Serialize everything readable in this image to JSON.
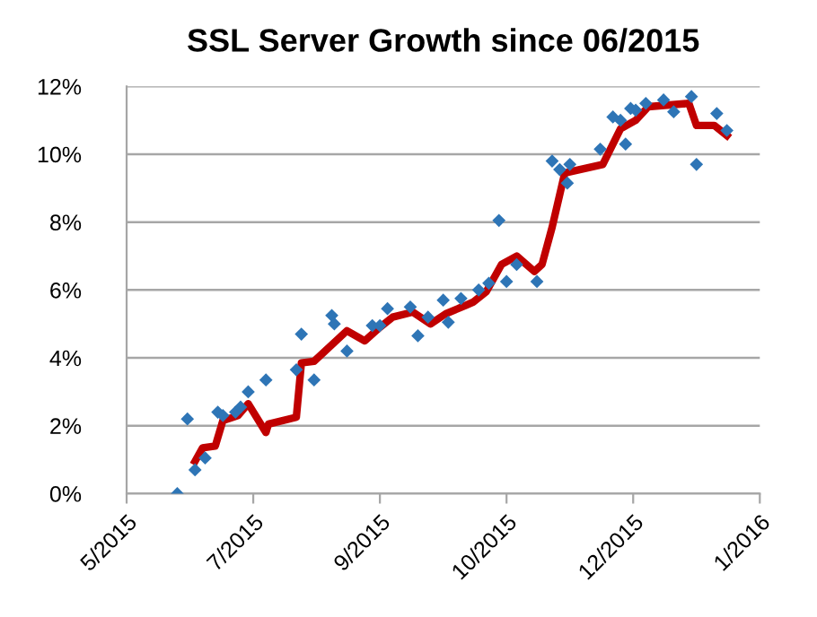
{
  "chart_data": {
    "type": "scatter",
    "title": "SSL Server Growth since 06/2015",
    "series": [
      {
        "color": "#2e75b6",
        "marker": "diamond",
        "x": [
          "2015-06-14",
          "2015-06-18",
          "2015-06-21",
          "2015-06-25",
          "2015-06-30",
          "2015-07-02",
          "2015-07-07",
          "2015-07-09",
          "2015-07-12",
          "2015-07-19",
          "2015-07-31",
          "2015-08-02",
          "2015-08-07",
          "2015-08-14",
          "2015-08-15",
          "2015-08-20",
          "2015-08-30",
          "2015-09-02",
          "2015-09-05",
          "2015-09-14",
          "2015-09-17",
          "2015-09-21",
          "2015-09-27",
          "2015-09-29",
          "2015-10-04",
          "2015-10-11",
          "2015-10-15",
          "2015-10-19",
          "2015-10-22",
          "2015-10-26",
          "2015-11-03",
          "2015-11-09",
          "2015-11-12",
          "2015-11-15",
          "2015-11-16",
          "2015-11-28",
          "2015-12-03",
          "2015-12-06",
          "2015-12-08",
          "2015-12-10",
          "2015-12-12",
          "2015-12-16",
          "2015-12-23",
          "2015-12-27",
          "2016-01-03",
          "2016-01-05",
          "2016-01-13",
          "2016-01-17"
        ],
        "values": [
          0,
          2.2,
          0.7,
          1.05,
          2.4,
          2.3,
          2.4,
          2.55,
          3.0,
          3.35,
          3.65,
          4.7,
          3.35,
          5.25,
          5.0,
          4.2,
          4.95,
          4.95,
          5.45,
          5.5,
          4.65,
          5.2,
          5.7,
          5.05,
          5.75,
          6.0,
          6.2,
          8.05,
          6.25,
          6.75,
          6.25,
          9.8,
          9.55,
          9.15,
          9.7,
          10.15,
          11.1,
          11.0,
          10.3,
          11.35,
          11.3,
          11.5,
          11.6,
          11.25,
          11.7,
          9.7,
          11.2,
          10.7
        ]
      },
      {
        "type": "line",
        "color": "#c00000",
        "marker": "none",
        "line_style": "solid",
        "x": [
          "2015-06-21",
          "2015-06-24",
          "2015-06-29",
          "2015-07-02",
          "2015-07-08",
          "2015-07-12",
          "2015-07-19",
          "2015-07-20",
          "2015-07-31",
          "2015-08-02",
          "2015-08-07",
          "2015-08-20",
          "2015-08-27",
          "2015-09-02",
          "2015-09-07",
          "2015-09-15",
          "2015-09-22",
          "2015-09-28",
          "2015-10-06",
          "2015-10-09",
          "2015-10-14",
          "2015-10-20",
          "2015-10-26",
          "2015-11-02",
          "2015-11-05",
          "2015-11-09",
          "2015-11-14",
          "2015-11-29",
          "2015-12-06",
          "2015-12-12",
          "2015-12-17",
          "2016-01-02",
          "2016-01-05",
          "2016-01-12",
          "2016-01-17"
        ],
        "values": [
          0.95,
          1.35,
          1.4,
          2.15,
          2.3,
          2.65,
          1.8,
          2.05,
          2.25,
          3.85,
          3.9,
          4.8,
          4.5,
          4.9,
          5.2,
          5.35,
          5.0,
          5.3,
          5.55,
          5.65,
          5.95,
          6.75,
          7.0,
          6.55,
          6.75,
          7.85,
          9.45,
          9.7,
          10.75,
          11.0,
          11.4,
          11.5,
          10.85,
          10.85,
          10.55
        ]
      }
    ],
    "xlim": [
      "2015-05-25",
      "2016-01-30"
    ],
    "xticks": [
      {
        "value": "2015-05-25",
        "label": "5/2015"
      },
      {
        "value": "2015-07-14",
        "label": "7/2015"
      },
      {
        "value": "2015-09-02",
        "label": "9/2015"
      },
      {
        "value": "2015-10-22",
        "label": "10/2015"
      },
      {
        "value": "2015-12-11",
        "label": "12/2015"
      },
      {
        "value": "2016-01-30",
        "label": "1/2016"
      }
    ],
    "ylim": [
      0,
      12
    ],
    "yticks": [
      {
        "value": 0,
        "label": "0%"
      },
      {
        "value": 2,
        "label": "2%"
      },
      {
        "value": 4,
        "label": "4%"
      },
      {
        "value": 6,
        "label": "6%"
      },
      {
        "value": 8,
        "label": "8%"
      },
      {
        "value": 10,
        "label": "10%"
      },
      {
        "value": 12,
        "label": "12%"
      }
    ],
    "grid": "y"
  }
}
